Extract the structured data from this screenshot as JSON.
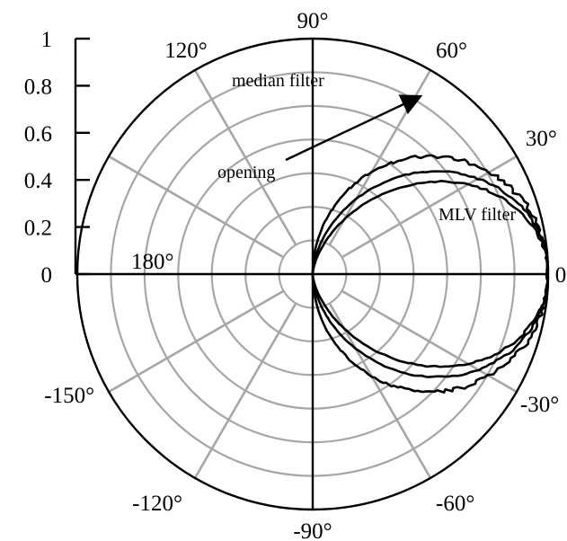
{
  "chart_data": {
    "type": "polar",
    "title": "",
    "radial_ticks": [
      "0",
      "0.2",
      "0.4",
      "0.6",
      "0.8",
      "1"
    ],
    "radial_range": [
      0,
      1
    ],
    "angle_ticks": [
      {
        "deg": 0,
        "label": "0"
      },
      {
        "deg": 30,
        "label": "30°"
      },
      {
        "deg": 60,
        "label": "60°"
      },
      {
        "deg": 90,
        "label": "90°"
      },
      {
        "deg": 120,
        "label": "120°"
      },
      {
        "deg": 180,
        "label": "180°"
      },
      {
        "deg": -150,
        "label": "-150°"
      },
      {
        "deg": -120,
        "label": "-120°"
      },
      {
        "deg": -90,
        "label": "-90°"
      },
      {
        "deg": -60,
        "label": "-60°"
      },
      {
        "deg": -30,
        "label": "-30°"
      }
    ],
    "grid": true,
    "series": [
      {
        "name": "median filter",
        "shape": "cos_power",
        "exponent": 1.0,
        "noise": 0.012
      },
      {
        "name": "opening",
        "shape": "cos_power",
        "exponent": 1.45,
        "noise": 0.006
      },
      {
        "name": "MLV filter",
        "shape": "cos_power",
        "exponent": 1.9,
        "noise": 0.006
      }
    ],
    "annotations": [
      {
        "text": "median filter",
        "target": "median filter"
      },
      {
        "text": "opening",
        "target": "opening",
        "arrow": true
      },
      {
        "text": "MLV filter",
        "target": "MLV filter"
      }
    ]
  }
}
